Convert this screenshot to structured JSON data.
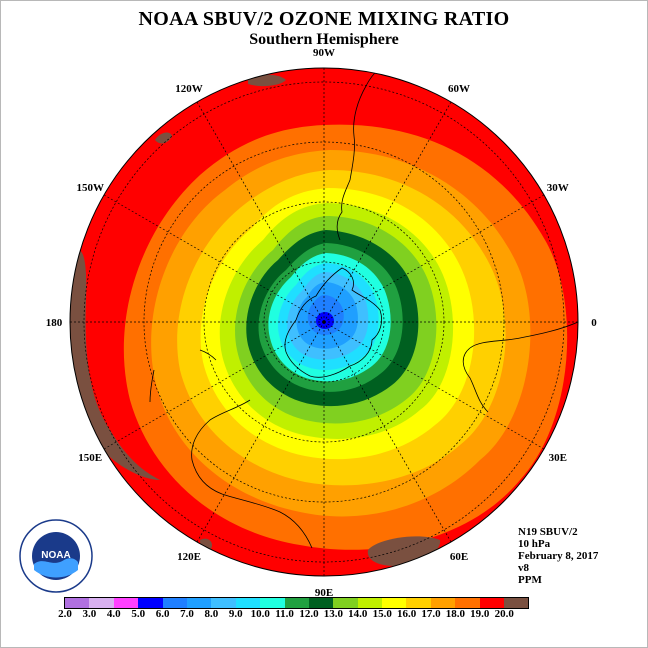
{
  "header": {
    "title": "NOAA SBUV/2 OZONE MIXING RATIO",
    "subtitle": "Southern Hemisphere"
  },
  "map": {
    "projection": "south-polar-stereographic",
    "longitude_labels": [
      {
        "text": "0",
        "lon": 0
      },
      {
        "text": "30E",
        "lon": 30
      },
      {
        "text": "60E",
        "lon": 60
      },
      {
        "text": "90E",
        "lon": 90
      },
      {
        "text": "120E",
        "lon": 120
      },
      {
        "text": "150E",
        "lon": 150
      },
      {
        "text": "180",
        "lon": 180
      },
      {
        "text": "150W",
        "lon": -150
      },
      {
        "text": "120W",
        "lon": -120
      },
      {
        "text": "90W",
        "lon": -90
      },
      {
        "text": "60W",
        "lon": -60
      },
      {
        "text": "30W",
        "lon": -30
      }
    ]
  },
  "info": {
    "satellite": "N19 SBUV/2",
    "level": "10 hPa",
    "date": "February 8, 2017",
    "version": "v8",
    "units": "PPM"
  },
  "colorbar": {
    "tick_labels": [
      "2.0",
      "3.0",
      "4.0",
      "5.0",
      "6.0",
      "7.0",
      "8.0",
      "9.0",
      "10.0",
      "11.0",
      "12.0",
      "13.0",
      "14.0",
      "15.0",
      "16.0",
      "17.0",
      "18.0",
      "19.0",
      "20.0"
    ],
    "colors": [
      "#b070e0",
      "#d8b0f0",
      "#ff40ff",
      "#0000ff",
      "#1f7fff",
      "#1f9fff",
      "#3fbfff",
      "#1fdfff",
      "#20ffe0",
      "#20a040",
      "#006020",
      "#80d020",
      "#c0f000",
      "#ffff00",
      "#ffd000",
      "#ffa000",
      "#ff7000",
      "#ff0000",
      "#7a5040"
    ]
  },
  "logo": {
    "text": "NOAA"
  }
}
